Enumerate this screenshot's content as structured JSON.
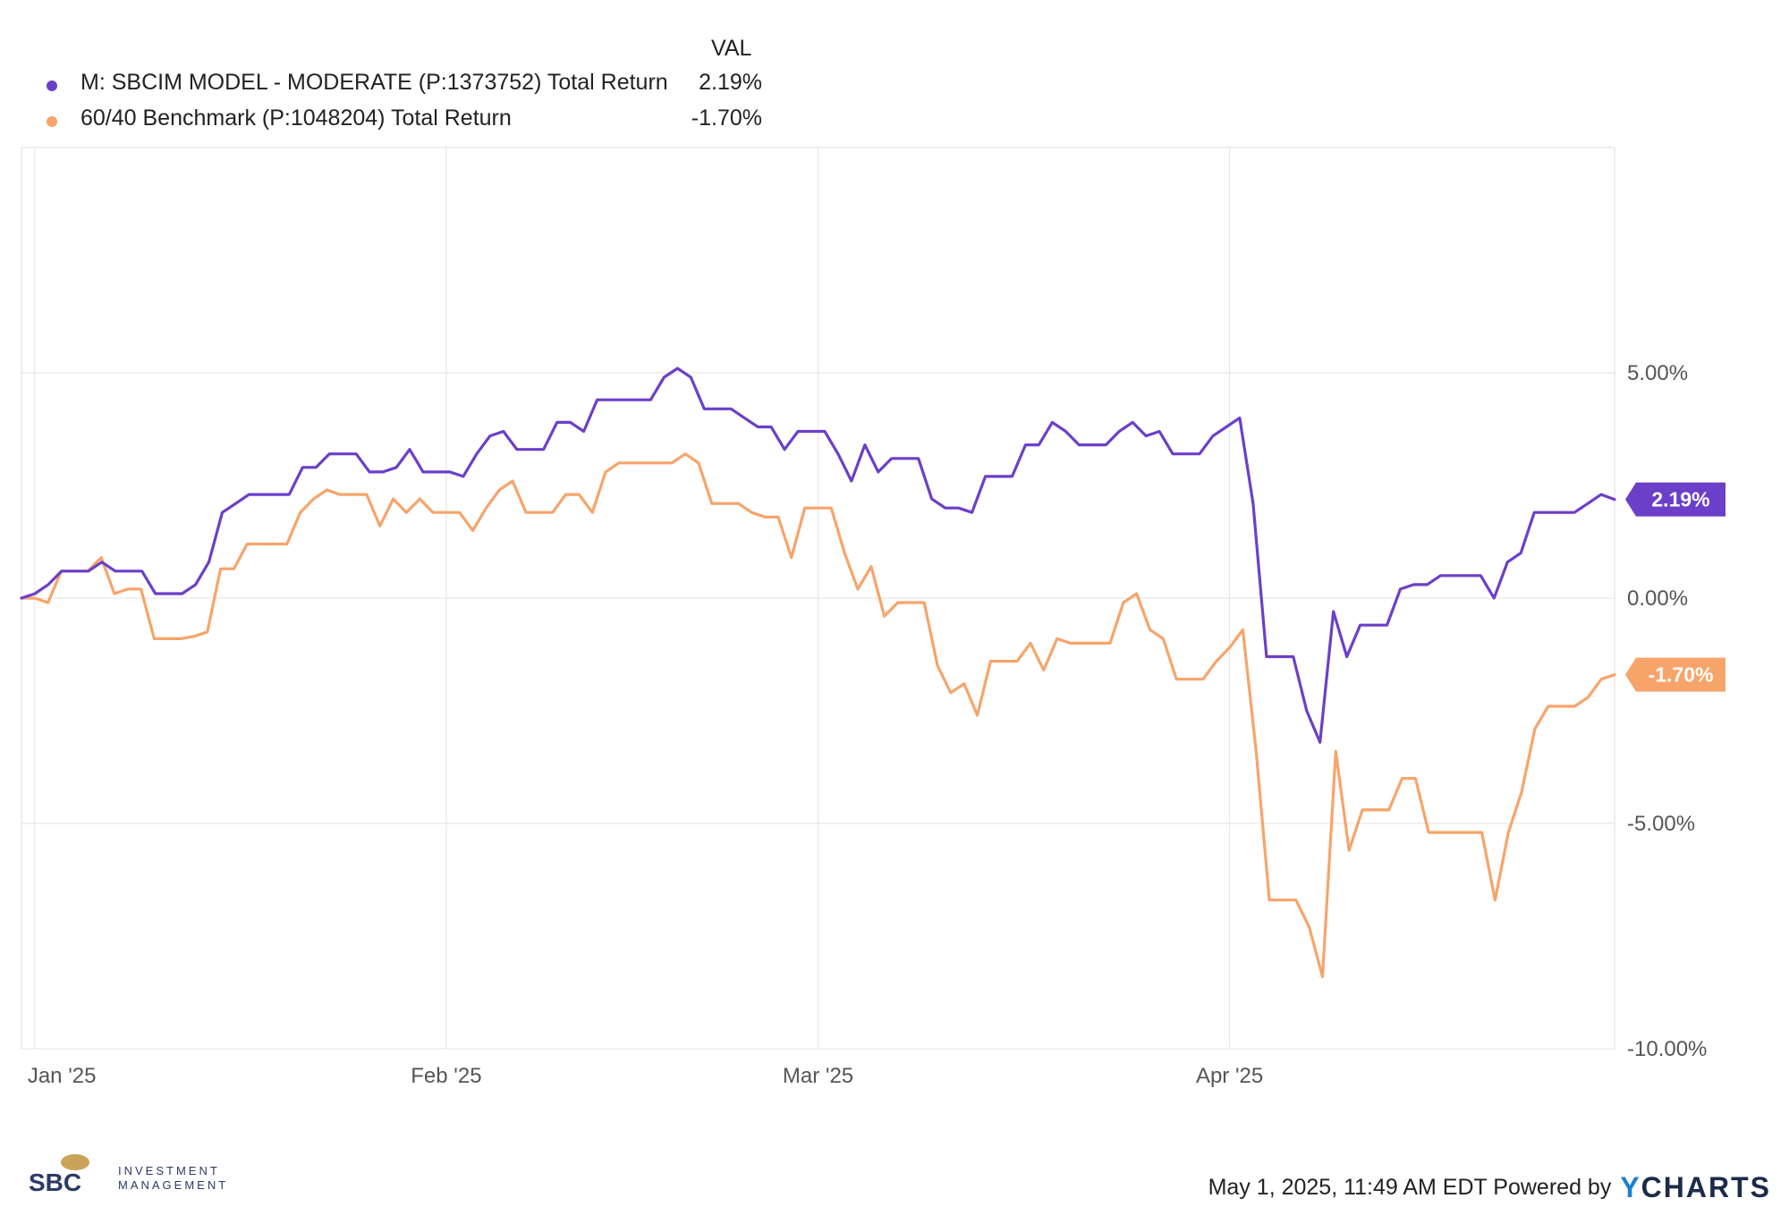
{
  "legend": {
    "header": "VAL",
    "items": [
      {
        "label": "M: SBCIM MODEL - MODERATE (P:1373752) Total Return",
        "value": "2.19%",
        "color": "#6c3fc9"
      },
      {
        "label": "60/40 Benchmark (P:1048204) Total Return",
        "value": "-1.70%",
        "color": "#f7a46a"
      }
    ]
  },
  "footer": {
    "timestamp": "May 1, 2025, 11:49 AM EDT Powered by",
    "brand_y": "Y",
    "brand_rest": "CHARTS",
    "logo_letters": "SBC",
    "logo_line1": "INVESTMENT",
    "logo_line2": "MANAGEMENT"
  },
  "chart_data": {
    "type": "line",
    "x_ticks": [
      "Jan '25",
      "Feb '25",
      "Mar '25",
      "Apr '25"
    ],
    "y_ticks": [
      "5.00%",
      "0.00%",
      "-5.00%",
      "-10.00%"
    ],
    "ylim": [
      -10,
      10
    ],
    "grid": true,
    "legend_position": "top-left",
    "x_dates_start": "2024-12-31",
    "x_dates_end": "2025-04-30",
    "series": [
      {
        "name": "M: SBCIM MODEL - MODERATE (P:1373752) Total Return",
        "color": "#6c3fc9",
        "end_label": "2.19%",
        "values": [
          0,
          0.1,
          0.3,
          0.6,
          0.6,
          0.6,
          0.8,
          0.6,
          0.6,
          0.6,
          0.1,
          0.1,
          0.1,
          0.3,
          0.8,
          1.9,
          2.1,
          2.3,
          2.3,
          2.3,
          2.3,
          2.9,
          2.9,
          3.2,
          3.2,
          3.2,
          2.8,
          2.8,
          2.9,
          3.3,
          2.8,
          2.8,
          2.8,
          2.7,
          3.2,
          3.6,
          3.7,
          3.3,
          3.3,
          3.3,
          3.9,
          3.9,
          3.7,
          4.4,
          4.4,
          4.4,
          4.4,
          4.4,
          4.9,
          5.1,
          4.9,
          4.2,
          4.2,
          4.2,
          4.0,
          3.8,
          3.8,
          3.3,
          3.7,
          3.7,
          3.7,
          3.2,
          2.6,
          3.4,
          2.8,
          3.1,
          3.1,
          3.1,
          2.2,
          2.0,
          2.0,
          1.9,
          2.7,
          2.7,
          2.7,
          3.4,
          3.4,
          3.9,
          3.7,
          3.4,
          3.4,
          3.4,
          3.7,
          3.9,
          3.6,
          3.7,
          3.2,
          3.2,
          3.2,
          3.6,
          3.8,
          4.0,
          2.1,
          -1.3,
          -1.3,
          -1.3,
          -2.5,
          -3.2,
          -0.3,
          -1.3,
          -0.6,
          -0.6,
          -0.6,
          0.2,
          0.3,
          0.3,
          0.5,
          0.5,
          0.5,
          0.5,
          0.0,
          0.8,
          1.0,
          1.9,
          1.9,
          1.9,
          1.9,
          2.1,
          2.3,
          2.19
        ]
      },
      {
        "name": "60/40 Benchmark (P:1048204) Total Return",
        "color": "#f7a46a",
        "end_label": "-1.70%",
        "values": [
          0,
          0,
          -0.1,
          0.6,
          0.6,
          0.6,
          0.9,
          0.1,
          0.2,
          0.2,
          -0.9,
          -0.9,
          -0.9,
          -0.85,
          -0.75,
          0.65,
          0.65,
          1.2,
          1.2,
          1.2,
          1.2,
          1.9,
          2.2,
          2.4,
          2.3,
          2.3,
          2.3,
          1.6,
          2.2,
          1.9,
          2.2,
          1.9,
          1.9,
          1.9,
          1.5,
          2.0,
          2.4,
          2.6,
          1.9,
          1.9,
          1.9,
          2.3,
          2.3,
          1.9,
          2.8,
          3.0,
          3.0,
          3.0,
          3.0,
          3.0,
          3.2,
          3.0,
          2.1,
          2.1,
          2.1,
          1.9,
          1.8,
          1.8,
          0.9,
          2.0,
          2.0,
          2.0,
          1.0,
          0.2,
          0.7,
          -0.4,
          -0.1,
          -0.1,
          -0.1,
          -1.5,
          -2.1,
          -1.9,
          -2.6,
          -1.4,
          -1.4,
          -1.4,
          -1.0,
          -1.6,
          -0.9,
          -1.0,
          -1.0,
          -1.0,
          -1.0,
          -0.1,
          0.1,
          -0.7,
          -0.9,
          -1.8,
          -1.8,
          -1.8,
          -1.4,
          -1.1,
          -0.7,
          -3.4,
          -6.7,
          -6.7,
          -6.7,
          -7.3,
          -8.4,
          -3.4,
          -5.6,
          -4.7,
          -4.7,
          -4.7,
          -4.0,
          -4.0,
          -5.2,
          -5.2,
          -5.2,
          -5.2,
          -5.2,
          -6.7,
          -5.2,
          -4.3,
          -2.9,
          -2.4,
          -2.4,
          -2.4,
          -2.2,
          -1.8,
          -1.7
        ]
      }
    ]
  }
}
